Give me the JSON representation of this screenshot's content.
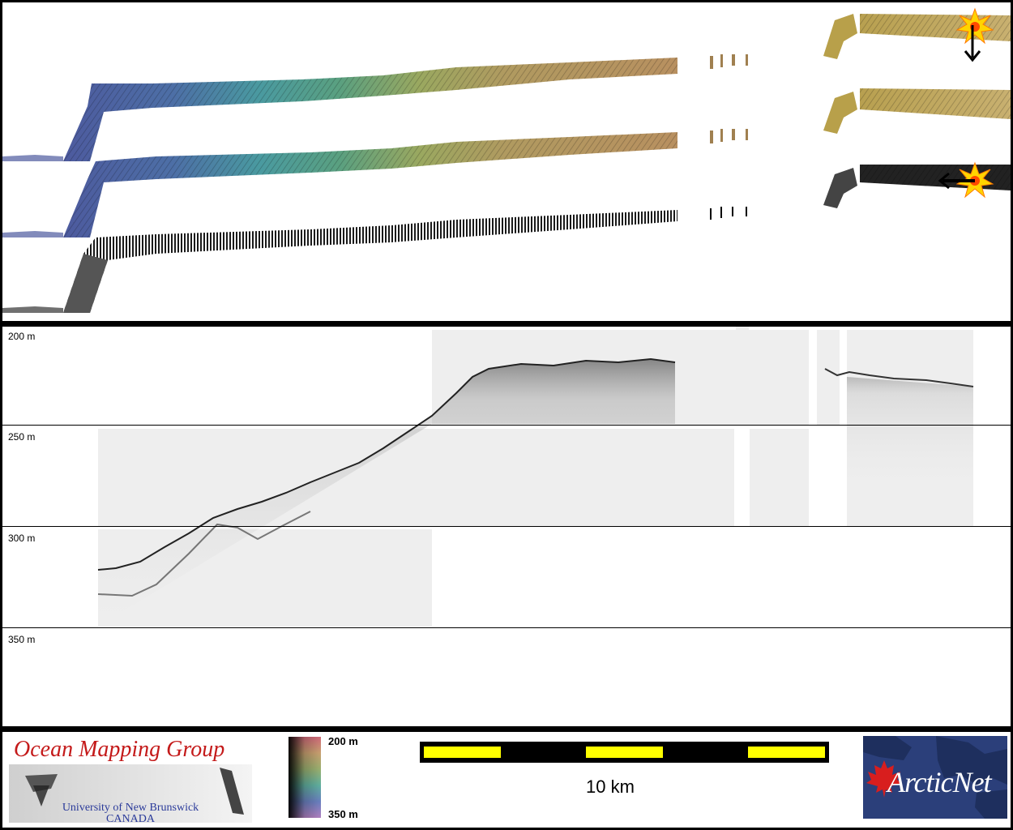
{
  "profile": {
    "depth_labels": [
      "200 m",
      "250 m",
      "300 m",
      "350 m"
    ]
  },
  "legend": {
    "scale_top": "200 m",
    "scale_bottom": "350 m",
    "scale_bar_text": "10 km"
  },
  "logos": {
    "omg_title": "Ocean Mapping Group",
    "omg_line1": "University of New Brunswick",
    "omg_line2": "CANADA",
    "arcticnet": "ArcticNet"
  },
  "colors": {
    "scale_bar_fill": "#ffff00",
    "omg_title": "#c41a1a",
    "arcticnet_bg": "#2b3f7a",
    "arcticnet_leaf": "#d81e1e"
  }
}
